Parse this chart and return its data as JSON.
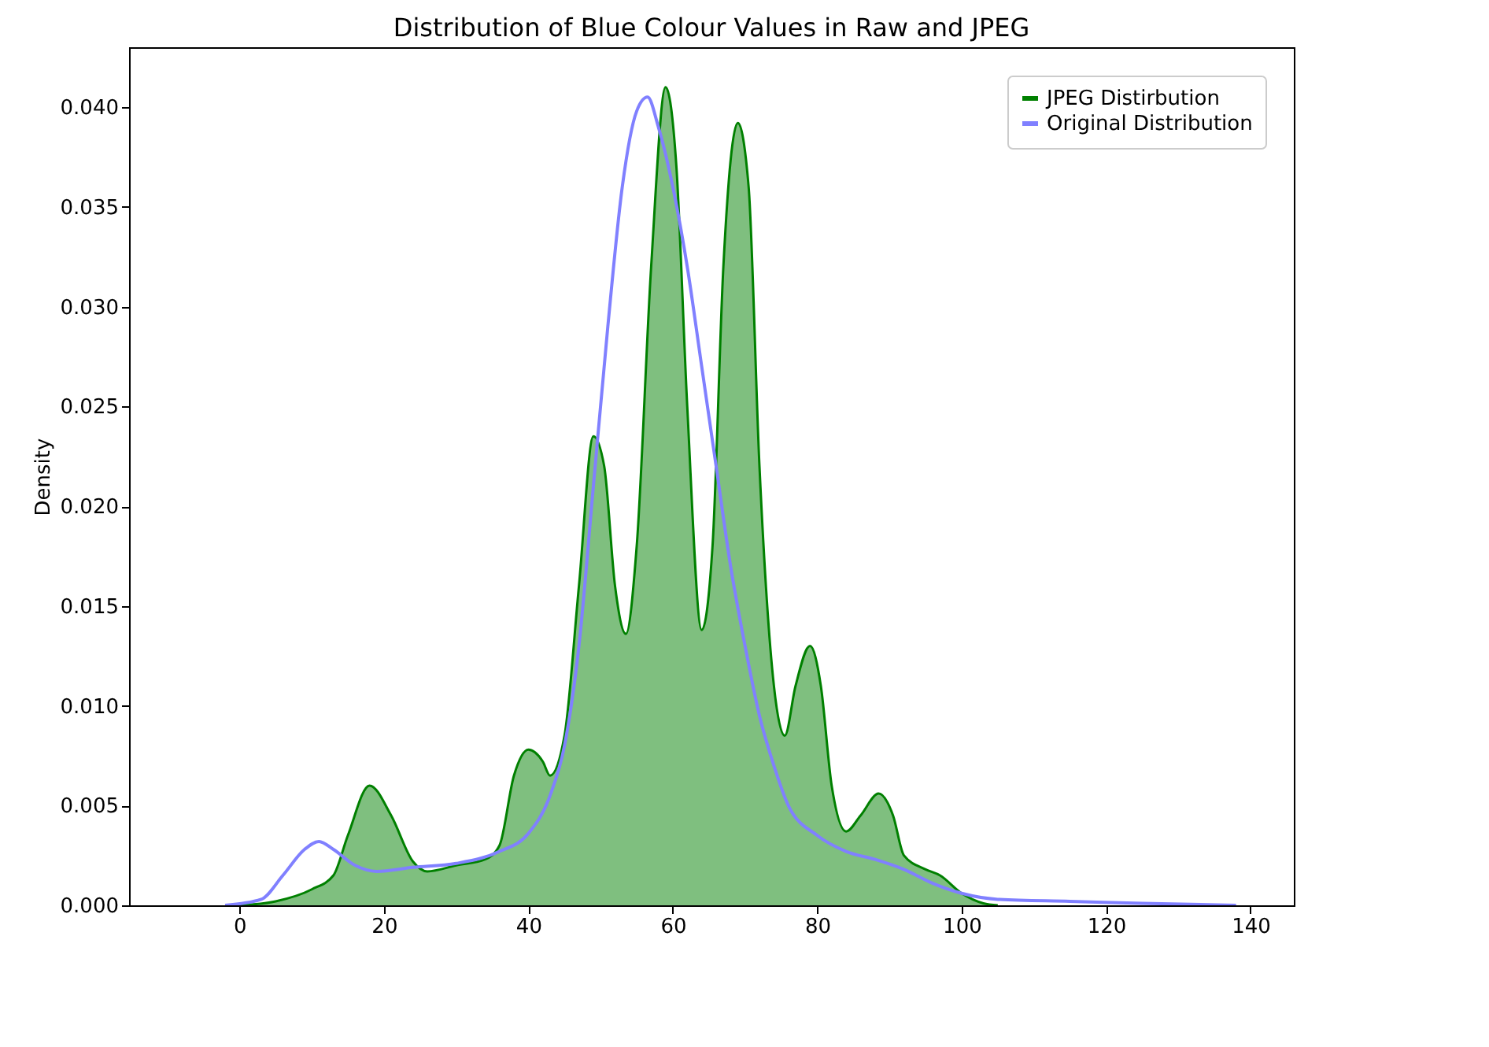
{
  "chart_data": {
    "type": "area",
    "title": "Distribution of Blue Colour Values in Raw and JPEG",
    "ylabel": "Density",
    "xlim": [
      -15.3,
      146
    ],
    "xticks": [
      0,
      20,
      40,
      60,
      80,
      100,
      120,
      140
    ],
    "ylim": [
      0,
      0.043
    ],
    "yticks": [
      {
        "value": 0,
        "label": "0.000"
      },
      {
        "value": 0.005,
        "label": "0.005"
      },
      {
        "value": 0.01,
        "label": "0.010"
      },
      {
        "value": 0.015,
        "label": "0.015"
      },
      {
        "value": 0.02,
        "label": "0.020"
      },
      {
        "value": 0.025,
        "label": "0.025"
      },
      {
        "value": 0.03,
        "label": "0.030"
      },
      {
        "value": 0.035,
        "label": "0.035"
      },
      {
        "value": 0.04,
        "label": "0.040"
      }
    ],
    "grid": false,
    "legend": "top right",
    "series": [
      {
        "name": "JPEG Distirbution",
        "type": "area",
        "color": "#008000",
        "x": [
          0,
          5,
          10,
          13,
          15,
          18,
          21,
          24,
          26,
          30,
          34,
          36,
          38,
          40,
          42,
          43,
          45,
          47,
          49,
          50.5,
          52,
          53.5,
          55,
          57,
          59,
          60.5,
          62,
          64,
          65.5,
          67,
          69,
          70.5,
          72,
          74,
          75.5,
          77,
          79,
          80.5,
          82,
          84,
          86,
          88.5,
          90.5,
          92,
          95,
          97,
          100,
          103,
          105
        ],
        "values": [
          0,
          0.0002,
          0.0008,
          0.0015,
          0.0035,
          0.006,
          0.0045,
          0.0022,
          0.0017,
          0.002,
          0.0023,
          0.003,
          0.0065,
          0.0078,
          0.0072,
          0.0065,
          0.0085,
          0.016,
          0.0235,
          0.022,
          0.016,
          0.0136,
          0.018,
          0.032,
          0.041,
          0.037,
          0.025,
          0.0138,
          0.018,
          0.032,
          0.0392,
          0.036,
          0.022,
          0.011,
          0.0085,
          0.011,
          0.013,
          0.011,
          0.006,
          0.0037,
          0.0045,
          0.0056,
          0.0045,
          0.0025,
          0.0018,
          0.0015,
          0.0006,
          0.0001,
          0
        ]
      },
      {
        "name": "Original Distribution",
        "type": "line",
        "color": "#8080ff",
        "x": [
          -2,
          3,
          6,
          9,
          11,
          13,
          16,
          19,
          24,
          30,
          36,
          40,
          43,
          45,
          47,
          49,
          51,
          53,
          55,
          56.5,
          58,
          60,
          62,
          64,
          66,
          68,
          70,
          72,
          74,
          76,
          80,
          84,
          88,
          92,
          96,
          100,
          105,
          115,
          125,
          138
        ],
        "values": [
          0,
          0.0003,
          0.0015,
          0.0028,
          0.0032,
          0.0028,
          0.002,
          0.0017,
          0.0019,
          0.0021,
          0.0027,
          0.0036,
          0.0055,
          0.008,
          0.013,
          0.021,
          0.029,
          0.036,
          0.0398,
          0.0405,
          0.039,
          0.036,
          0.032,
          0.027,
          0.022,
          0.017,
          0.013,
          0.0095,
          0.007,
          0.005,
          0.0035,
          0.0027,
          0.0023,
          0.0018,
          0.0011,
          0.0006,
          0.0003,
          0.0002,
          0.0001,
          0
        ]
      }
    ]
  }
}
